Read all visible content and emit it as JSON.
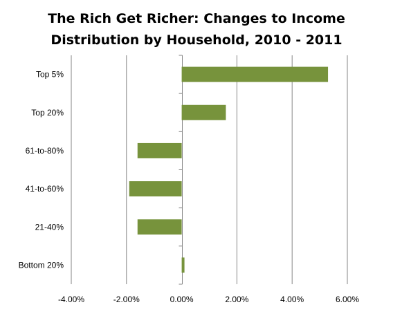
{
  "chart_data": {
    "type": "bar",
    "orientation": "horizontal",
    "title_lines": [
      "The Rich Get Richer: Changes to Income",
      "Distribution by Household, 2010 - 2011"
    ],
    "categories": [
      "Top 5%",
      "Top 20%",
      "61-to-80%",
      "41-to-60%",
      "21-40%",
      "Bottom 20%"
    ],
    "values": [
      5.3,
      1.6,
      -1.6,
      -1.9,
      -1.6,
      0.1
    ],
    "value_unit": "percent",
    "xlim": [
      -4,
      6
    ],
    "xticks": [
      -4,
      -2,
      0,
      2,
      4,
      6
    ],
    "xtick_labels": [
      "-4.00%",
      "-2.00%",
      "0.00%",
      "2.00%",
      "4.00%",
      "6.00%"
    ],
    "xlabel": "",
    "ylabel": "",
    "grid": "vertical",
    "legend": "none",
    "bar_color": "#77933c",
    "grid_color": "#868686"
  }
}
